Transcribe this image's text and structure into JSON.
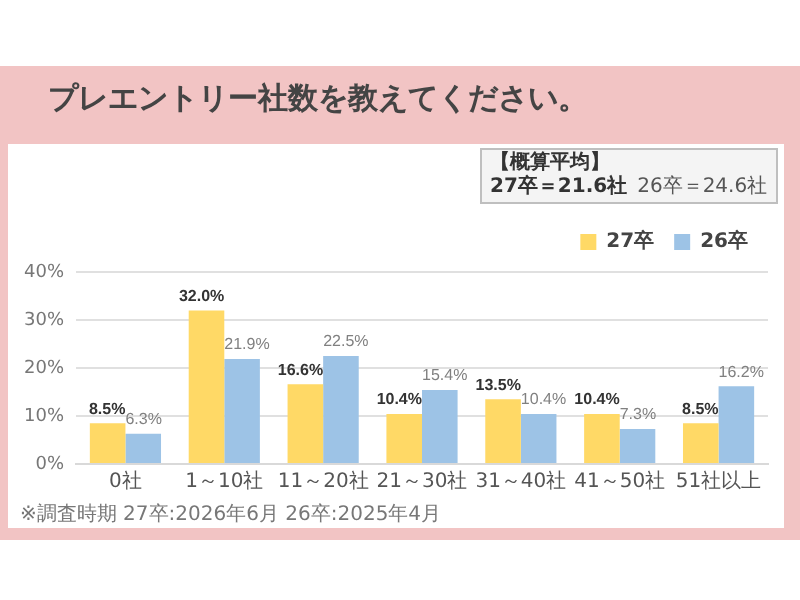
{
  "chart_data": {
    "type": "bar",
    "title": "プレエントリー社数を教えてください。",
    "categories": [
      "0社",
      "1～10社",
      "11～20社",
      "21～30社",
      "31～40社",
      "41～50社",
      "51社以上"
    ],
    "series": [
      {
        "name": "27卒",
        "color": "#ffd966",
        "values": [
          8.5,
          32.0,
          16.6,
          10.4,
          13.5,
          10.4,
          8.5
        ],
        "value_labels": [
          "8.5%",
          "32.0%",
          "16.6%",
          "10.4%",
          "13.5%",
          "10.4%",
          "8.5%"
        ]
      },
      {
        "name": "26卒",
        "color": "#9dc3e6",
        "values": [
          6.3,
          21.9,
          22.5,
          15.4,
          10.4,
          7.3,
          16.2
        ],
        "value_labels": [
          "6.3%",
          "21.9%",
          "22.5%",
          "15.4%",
          "10.4%",
          "7.3%",
          "16.2%"
        ]
      }
    ],
    "ylim": [
      0,
      40
    ],
    "yticks": [
      {
        "value": 0,
        "label": "0%"
      },
      {
        "value": 10,
        "label": "10%"
      },
      {
        "value": 20,
        "label": "20%"
      },
      {
        "value": 30,
        "label": "30%"
      },
      {
        "value": 40,
        "label": "40%"
      }
    ],
    "grid": "y",
    "legend": "top right",
    "annotations": [
      "【概算平均】",
      "27卒＝21.6社",
      "26卒＝24.6社",
      "※調査時期 27卒:2026年6月 26卒:2025年4月"
    ]
  }
}
